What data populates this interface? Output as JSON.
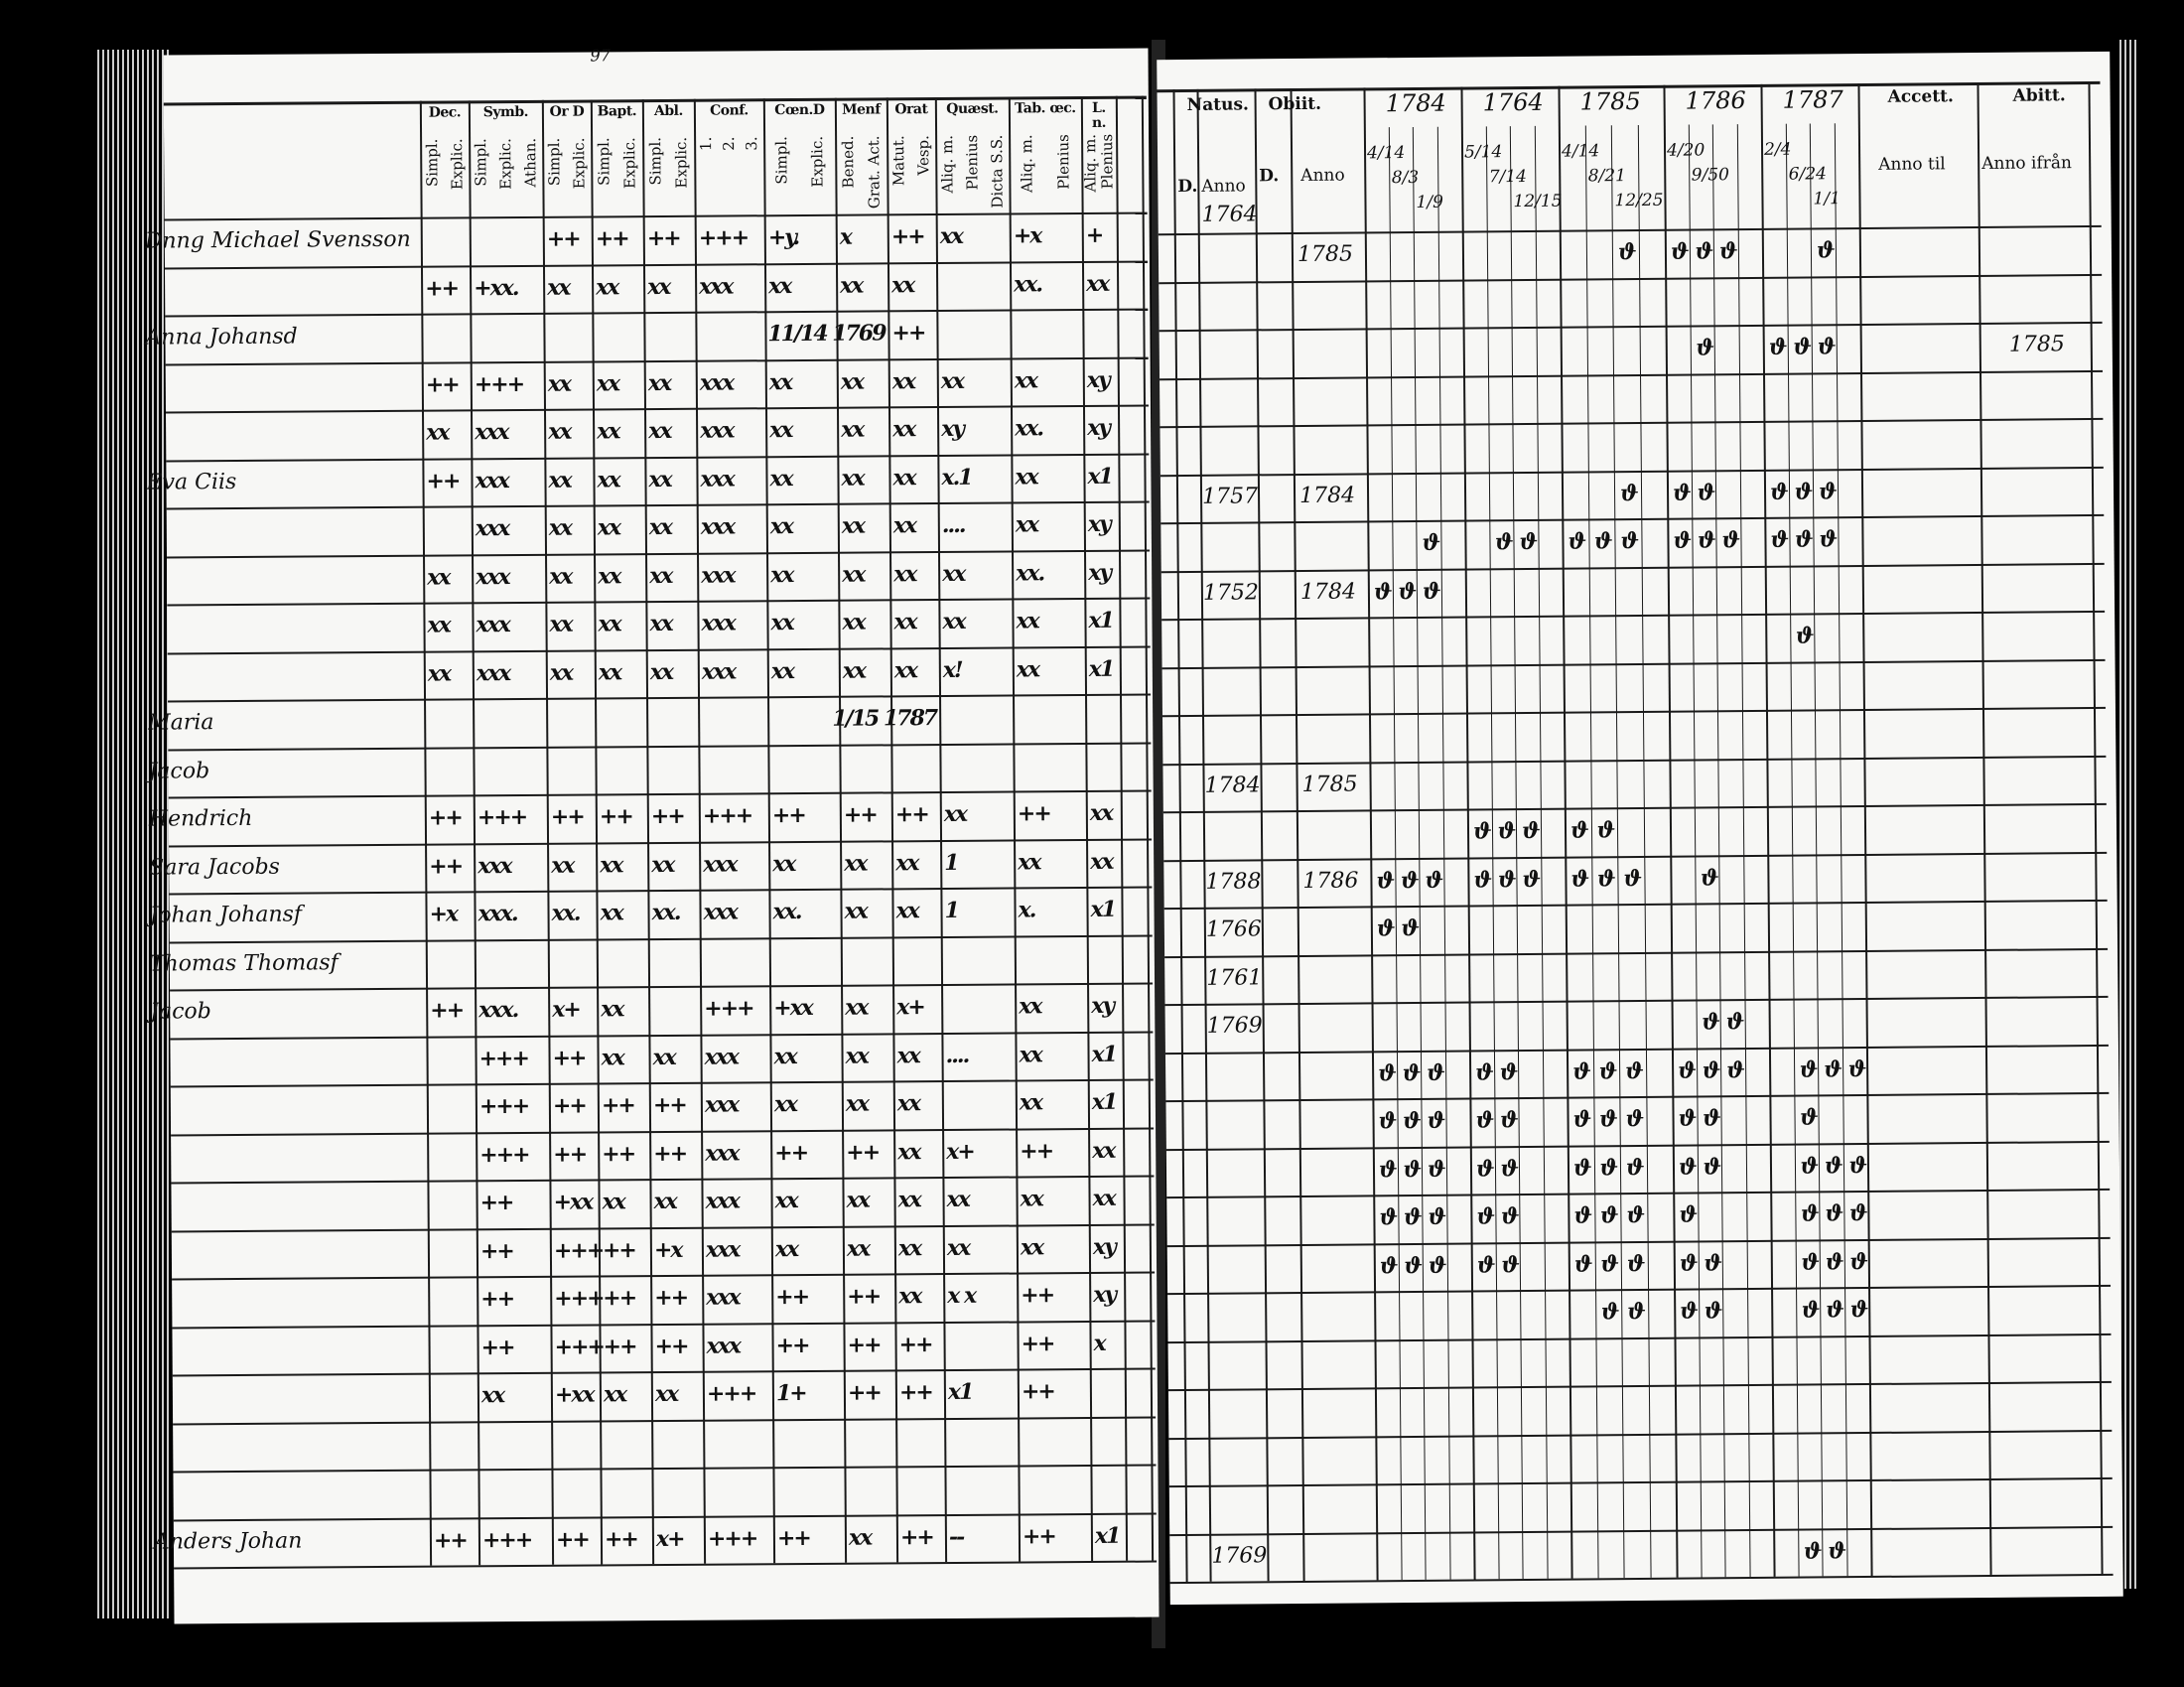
{
  "left_page": {
    "page_number": "97",
    "column_headers": [
      {
        "title": "Dec.",
        "sub": [
          "Simpl.",
          "Explic."
        ]
      },
      {
        "title": "Symb.",
        "sub": [
          "Simpl.",
          "Explic.",
          "Athan."
        ]
      },
      {
        "title": "Or D",
        "sub": [
          "Simpl.",
          "Explic."
        ]
      },
      {
        "title": "Bapt.",
        "sub": [
          "Simpl.",
          "Explic."
        ]
      },
      {
        "title": "Abl.",
        "sub": [
          "Simpl.",
          "Explic."
        ]
      },
      {
        "title": "Conf.",
        "sub": [
          "1.",
          "2.",
          "3."
        ]
      },
      {
        "title": "Cœn.D",
        "sub": [
          "Simpl.",
          "Explic."
        ]
      },
      {
        "title": "Menf",
        "sub": [
          "Bened.",
          "Grat. Act."
        ]
      },
      {
        "title": "Orat",
        "sub": [
          "Matut.",
          "Vesp."
        ]
      },
      {
        "title": "Quæst.",
        "sub": [
          "Aliq. m.",
          "Plenius",
          "Dicta S.S."
        ]
      },
      {
        "title": "Tab. œc.",
        "sub": [
          "Aliq. m.",
          "Plenius"
        ]
      },
      {
        "title": "L. n.",
        "sub": [
          "Aliq. m.",
          "Plenius"
        ]
      }
    ],
    "rows": [
      {
        "name": "Dnng Michael Svensson",
        "marks": [
          "",
          "",
          "++",
          "++",
          "++",
          "+++",
          "+y.",
          "x",
          "++",
          "xx",
          "+x",
          "+"
        ]
      },
      {
        "name": "",
        "marks": [
          "++",
          "+xx.",
          "xx",
          "xx",
          "xx",
          "xxx",
          "xx",
          "xx",
          "xx",
          "",
          "xx.",
          "xx"
        ]
      },
      {
        "name": "Anna Johansd",
        "marks": [
          "",
          "",
          "",
          "",
          "",
          "",
          "",
          "11/14 1769",
          "++",
          "",
          "",
          ""
        ]
      },
      {
        "name": "",
        "marks": [
          "++",
          "+++",
          "xx",
          "xx",
          "xx",
          "xxx",
          "xx",
          "xx",
          "xx",
          "xx",
          "xx",
          "xy"
        ]
      },
      {
        "name": "",
        "marks": [
          "xx",
          "xxx",
          "xx",
          "xx",
          "xx",
          "xxx",
          "xx",
          "xx",
          "xx",
          "xy",
          "xx.",
          "xy"
        ]
      },
      {
        "name": "Eva Ciis",
        "marks": [
          "++",
          "xxx",
          "xx",
          "xx",
          "xx",
          "xxx",
          "xx",
          "xx",
          "xx",
          "x.1",
          "xx",
          "x1"
        ]
      },
      {
        "name": "",
        "marks": [
          "",
          "xxx",
          "xx",
          "xx",
          "xx",
          "xxx",
          "xx",
          "xx",
          "xx",
          "....",
          "xx",
          "xy"
        ]
      },
      {
        "name": "",
        "marks": [
          "xx",
          "xxx",
          "xx",
          "xx",
          "xx",
          "xxx",
          "xx",
          "xx",
          "xx",
          "xx",
          "xx.",
          "xy"
        ]
      },
      {
        "name": "",
        "marks": [
          "xx",
          "xxx",
          "xx",
          "xx",
          "xx",
          "xxx",
          "xx",
          "xx",
          "xx",
          "xx",
          "xx",
          "x1"
        ]
      },
      {
        "name": "",
        "marks": [
          "xx",
          "xxx",
          "xx",
          "xx",
          "xx",
          "xxx",
          "xx",
          "xx",
          "xx",
          "x!",
          "xx",
          "x1"
        ]
      },
      {
        "name": "Maria",
        "marks": [
          "",
          "",
          "",
          "",
          "",
          "",
          "",
          "",
          "1/15 1787",
          "",
          "",
          ""
        ]
      },
      {
        "name": "Jacob",
        "marks": [
          "",
          "",
          "",
          "",
          "",
          "",
          "",
          "",
          "",
          "",
          "",
          ""
        ]
      },
      {
        "name": "Hendrich",
        "marks": [
          "++",
          "+++",
          "++",
          "++",
          "++",
          "+++",
          "++",
          "++",
          "++",
          "xx",
          "++",
          "xx"
        ]
      },
      {
        "name": "Sara Jacobs",
        "marks": [
          "++",
          "xxx",
          "xx",
          "xx",
          "xx",
          "xxx",
          "xx",
          "xx",
          "xx",
          "1",
          "xx",
          "xx"
        ]
      },
      {
        "name": "Johan Johansf",
        "marks": [
          "+x",
          "xxx.",
          "xx.",
          "xx",
          "xx.",
          "xxx",
          "xx.",
          "xx",
          "xx",
          "1",
          "x.",
          "x1"
        ]
      },
      {
        "name": "Thomas Thomasf",
        "marks": [
          "",
          "",
          "",
          "",
          "",
          "",
          "",
          "",
          "",
          "",
          "",
          ""
        ]
      },
      {
        "name": "Jacob",
        "marks": [
          "++",
          "xxx.",
          "x+",
          "xx",
          "",
          "+++",
          "+xx",
          "xx",
          "x+",
          "",
          "xx",
          "xy"
        ]
      },
      {
        "name": "",
        "marks": [
          "",
          "+++",
          "++",
          "xx",
          "xx",
          "xxx",
          "xx",
          "xx",
          "xx",
          "....",
          "xx",
          "x1"
        ]
      },
      {
        "name": "",
        "marks": [
          "",
          "+++",
          "++",
          "++",
          "++",
          "xxx",
          "xx",
          "xx",
          "xx",
          "",
          "xx",
          "x1"
        ]
      },
      {
        "name": "",
        "marks": [
          "",
          "+++",
          "++",
          "++",
          "++",
          "xxx",
          "++",
          "++",
          "xx",
          "x+",
          "++",
          "xx"
        ]
      },
      {
        "name": "",
        "marks": [
          "",
          "++",
          "+xx",
          "xx",
          "xx",
          "xxx",
          "xx",
          "xx",
          "xx",
          "xx",
          "xx",
          "xx"
        ]
      },
      {
        "name": "",
        "marks": [
          "",
          "++",
          "+++",
          "++",
          "+x",
          "xxx",
          "xx",
          "xx",
          "xx",
          "xx",
          "xx",
          "xy"
        ]
      },
      {
        "name": "",
        "marks": [
          "",
          "++",
          "+++",
          "++",
          "++",
          "xxx",
          "++",
          "++",
          "xx",
          "x x",
          "++",
          "xy"
        ]
      },
      {
        "name": "",
        "marks": [
          "",
          "++",
          "+++",
          "++",
          "++",
          "xxx",
          "++",
          "++",
          "++",
          "",
          "++",
          "x"
        ]
      },
      {
        "name": "",
        "marks": [
          "",
          "xx",
          "+xx",
          "xx",
          "xx",
          "+++",
          "1+",
          "++",
          "++",
          "x1",
          "++",
          ""
        ]
      },
      {
        "name": "",
        "marks": [
          "",
          "",
          "",
          "",
          "",
          "",
          "",
          "",
          "",
          "",
          "",
          ""
        ]
      },
      {
        "name": "",
        "marks": [
          "",
          "",
          "",
          "",
          "",
          "",
          "",
          "",
          "",
          "",
          "",
          ""
        ]
      },
      {
        "name": "Anders Johan",
        "marks": [
          "++",
          "+++",
          "++",
          "++",
          "x+",
          "+++",
          "++",
          "xx",
          "++",
          "--",
          "++",
          "x1"
        ]
      }
    ]
  },
  "right_page": {
    "column_headers": {
      "natus": "Natus.",
      "natus_d": "D.",
      "natus_anno": "Anno",
      "obiit": "Obiit.",
      "obiit_d": "D.",
      "obiit_anno": "Anno",
      "years": [
        "1784",
        "1764",
        "1785",
        "1786",
        "1787"
      ],
      "year_dates": [
        [
          "4/14",
          "8/3",
          "1/9"
        ],
        [
          "5/14",
          "7/14",
          "12/15"
        ],
        [
          "4/14",
          "8/21",
          "12/25"
        ],
        [
          "4/20",
          "9/50",
          ""
        ],
        [
          "2/4",
          "6/24",
          "1/1"
        ]
      ],
      "accett": "Accett.",
      "accett_sub": "Anno til",
      "abitt": "Abitt.",
      "abitt_sub": "Anno ifrån",
      "first_natus": "1764"
    },
    "rows": [
      {
        "natus": "",
        "obiit": "1785",
        "abitt": "",
        "marks": [
          "",
          "",
          "",
          "",
          "",
          "",
          "",
          "",
          "ϑ",
          "ϑ",
          "ϑ",
          "ϑ",
          "",
          "",
          "ϑ",
          ""
        ]
      },
      {
        "natus": "",
        "obiit": "",
        "abitt": "",
        "marks": []
      },
      {
        "natus": "",
        "obiit": "",
        "abitt": "1785",
        "marks": [
          "",
          "",
          "",
          "",
          "",
          "",
          "",
          "",
          "",
          "",
          "ϑ",
          "",
          "ϑ",
          "ϑ",
          "ϑ",
          ""
        ]
      },
      {
        "natus": "",
        "obiit": "",
        "abitt": "",
        "marks": []
      },
      {
        "natus": "",
        "obiit": "",
        "abitt": "",
        "marks": []
      },
      {
        "natus": "1757",
        "obiit": "1784",
        "abitt": "",
        "marks": [
          "",
          "",
          "",
          "",
          "",
          "",
          "",
          "",
          "ϑ",
          "ϑ",
          "ϑ",
          "",
          "ϑ",
          "ϑ",
          "ϑ",
          ""
        ]
      },
      {
        "natus": "",
        "obiit": "",
        "abitt": "",
        "marks": [
          "",
          "",
          "ϑ",
          "",
          "ϑ",
          "ϑ",
          "ϑ",
          "ϑ",
          "ϑ",
          "ϑ",
          "ϑ",
          "ϑ",
          "ϑ",
          "ϑ",
          "ϑ",
          ""
        ]
      },
      {
        "natus": "1752",
        "obiit": "1784",
        "abitt": "",
        "marks": [
          "ϑ",
          "ϑ",
          "ϑ",
          "",
          "",
          "",
          "",
          "",
          "",
          "",
          "",
          "",
          "",
          "",
          "",
          ""
        ]
      },
      {
        "natus": "",
        "obiit": "",
        "abitt": "",
        "marks": [
          "",
          "",
          "",
          "",
          "",
          "",
          "",
          "",
          "",
          "",
          "",
          "",
          "",
          "ϑ",
          "",
          ""
        ]
      },
      {
        "natus": "",
        "obiit": "",
        "abitt": "",
        "marks": []
      },
      {
        "natus": "",
        "obiit": "",
        "abitt": "",
        "marks": []
      },
      {
        "natus": "1784",
        "obiit": "1785",
        "abitt": "",
        "marks": []
      },
      {
        "natus": "",
        "obiit": "",
        "abitt": "",
        "marks": [
          "",
          "",
          "",
          "ϑ",
          "ϑ",
          "ϑ",
          "ϑ",
          "ϑ",
          "",
          "",
          "",
          "",
          "",
          "",
          "",
          ""
        ]
      },
      {
        "natus": "1788",
        "obiit": "1786",
        "abitt": "",
        "marks": [
          "ϑ",
          "ϑ",
          "ϑ",
          "ϑ",
          "ϑ",
          "ϑ",
          "ϑ",
          "ϑ",
          "ϑ",
          "",
          "ϑ",
          "",
          "",
          "",
          "",
          ""
        ]
      },
      {
        "natus": "1766",
        "obiit": "",
        "abitt": "",
        "marks": [
          "ϑ",
          "ϑ",
          "",
          "",
          "",
          "",
          "",
          "",
          "",
          "",
          "",
          "",
          "",
          "",
          "",
          ""
        ]
      },
      {
        "natus": "1761",
        "obiit": "",
        "abitt": "",
        "marks": []
      },
      {
        "natus": "1769",
        "obiit": "",
        "abitt": "",
        "marks": [
          "",
          "",
          "",
          "",
          "",
          "",
          "",
          "",
          "",
          "",
          "ϑ",
          "ϑ",
          "",
          "",
          "",
          ""
        ]
      },
      {
        "natus": "",
        "obiit": "",
        "abitt": "",
        "marks": [
          "ϑ",
          "ϑ",
          "ϑ",
          "ϑ",
          "ϑ",
          "",
          "ϑ",
          "ϑ",
          "ϑ",
          "ϑ",
          "ϑ",
          "ϑ",
          "",
          "ϑ",
          "ϑ",
          "ϑ"
        ]
      },
      {
        "natus": "",
        "obiit": "",
        "abitt": "",
        "marks": [
          "ϑ",
          "ϑ",
          "ϑ",
          "ϑ",
          "ϑ",
          "",
          "ϑ",
          "ϑ",
          "ϑ",
          "ϑ",
          "ϑ",
          "",
          "",
          "ϑ",
          "",
          ""
        ]
      },
      {
        "natus": "",
        "obiit": "",
        "abitt": "",
        "marks": [
          "ϑ",
          "ϑ",
          "ϑ",
          "ϑ",
          "ϑ",
          "",
          "ϑ",
          "ϑ",
          "ϑ",
          "ϑ",
          "ϑ",
          "",
          "",
          "ϑ",
          "ϑ",
          "ϑ"
        ]
      },
      {
        "natus": "",
        "obiit": "",
        "abitt": "",
        "marks": [
          "ϑ",
          "ϑ",
          "ϑ",
          "ϑ",
          "ϑ",
          "",
          "ϑ",
          "ϑ",
          "ϑ",
          "ϑ",
          "",
          "",
          "",
          "ϑ",
          "ϑ",
          "ϑ"
        ]
      },
      {
        "natus": "",
        "obiit": "",
        "abitt": "",
        "marks": [
          "ϑ",
          "ϑ",
          "ϑ",
          "ϑ",
          "ϑ",
          "",
          "ϑ",
          "ϑ",
          "ϑ",
          "ϑ",
          "ϑ",
          "",
          "",
          "ϑ",
          "ϑ",
          "ϑ"
        ]
      },
      {
        "natus": "",
        "obiit": "",
        "abitt": "",
        "marks": [
          "",
          "",
          "",
          "",
          "",
          "",
          "",
          "ϑ",
          "ϑ",
          "ϑ",
          "ϑ",
          "",
          "",
          "ϑ",
          "ϑ",
          "ϑ"
        ]
      },
      {
        "natus": "",
        "obiit": "",
        "abitt": "",
        "marks": []
      },
      {
        "natus": "",
        "obiit": "",
        "abitt": "",
        "marks": []
      },
      {
        "natus": "",
        "obiit": "",
        "abitt": "",
        "marks": []
      },
      {
        "natus": "",
        "obiit": "",
        "abitt": "",
        "marks": []
      },
      {
        "natus": "1769",
        "obiit": "",
        "abitt": "",
        "marks": [
          "",
          "",
          "",
          "",
          "",
          "",
          "",
          "",
          "",
          "",
          "",
          "",
          "",
          "ϑ",
          "ϑ",
          ""
        ]
      }
    ]
  }
}
